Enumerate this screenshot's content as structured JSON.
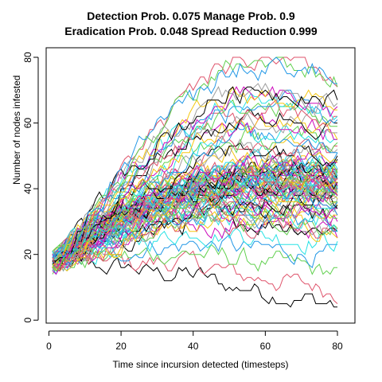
{
  "chart_data": {
    "type": "line",
    "title": "Detection Prob. 0.075 Manage Prob. 0.9",
    "subtitle": "Eradication Prob. 0.048 Spread Reduction 0.999",
    "xlabel": "Time since incursion detected (timesteps)",
    "ylabel": "Number of nodes infested",
    "xlim": [
      1,
      80
    ],
    "ylim": [
      2,
      80
    ],
    "x_ticks": [
      0,
      20,
      40,
      60,
      80
    ],
    "y_ticks": [
      0,
      20,
      40,
      60,
      80
    ],
    "grid": false,
    "legend": "none",
    "n_series": 100,
    "start_value": 18,
    "x_range": [
      1,
      80
    ],
    "y_observed_range": [
      2,
      80
    ],
    "palette": [
      "#000000",
      "#DF536B",
      "#61D04F",
      "#2297E6",
      "#28E2E5",
      "#CD0BBC",
      "#F5C710",
      "#9E9E9E"
    ],
    "envelope": {
      "x": [
        1,
        10,
        20,
        30,
        40,
        50,
        60,
        70,
        80
      ],
      "max": [
        18,
        33,
        50,
        62,
        72,
        80,
        80,
        78,
        73
      ],
      "upper_typical": [
        19,
        28,
        35,
        40,
        44,
        46,
        47,
        47,
        46
      ],
      "median": [
        18,
        24,
        30,
        34,
        37,
        38,
        38,
        38,
        37
      ],
      "lower_typical": [
        17,
        20,
        24,
        27,
        29,
        29,
        28,
        27,
        26
      ],
      "min": [
        16,
        16,
        15,
        13,
        11,
        8,
        6,
        4,
        2
      ]
    }
  }
}
